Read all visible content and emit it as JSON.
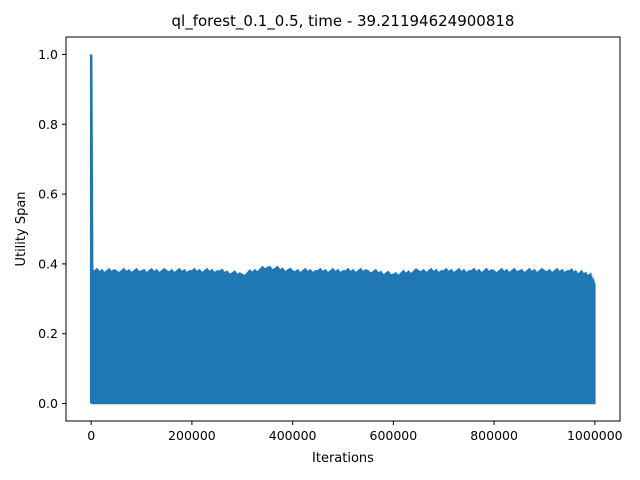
{
  "chart_data": {
    "type": "line",
    "title": "ql_forest_0.1_0.5, time - 39.21194624900818",
    "xlabel": "Iterations",
    "ylabel": "Utility Span",
    "xlim": [
      -50000,
      1050000
    ],
    "ylim": [
      -0.05,
      1.05
    ],
    "xticks": [
      0,
      200000,
      400000,
      600000,
      800000,
      1000000
    ],
    "xtick_labels": [
      "0",
      "200000",
      "400000",
      "600000",
      "800000",
      "1000000"
    ],
    "yticks": [
      0.0,
      0.2,
      0.4,
      0.6,
      0.8,
      1.0
    ],
    "ytick_labels": [
      "0.0",
      "0.2",
      "0.4",
      "0.6",
      "0.8",
      "1.0"
    ],
    "grid": false,
    "series": [
      {
        "color": "#1f77b4",
        "x_range": [
          0,
          1000000
        ],
        "peak": {
          "x": 0,
          "y": 1.0
        },
        "oscillation_min": 0.0,
        "envelope_max": {
          "x": [
            2000,
            50000,
            100000,
            150000,
            200000,
            250000,
            300000,
            350000,
            400000,
            450000,
            500000,
            550000,
            600000,
            650000,
            700000,
            750000,
            800000,
            850000,
            900000,
            950000,
            990000,
            1000000
          ],
          "y": [
            0.38,
            0.38,
            0.38,
            0.38,
            0.38,
            0.38,
            0.37,
            0.39,
            0.38,
            0.38,
            0.38,
            0.38,
            0.37,
            0.38,
            0.38,
            0.38,
            0.38,
            0.38,
            0.38,
            0.38,
            0.37,
            0.34
          ]
        }
      }
    ]
  }
}
